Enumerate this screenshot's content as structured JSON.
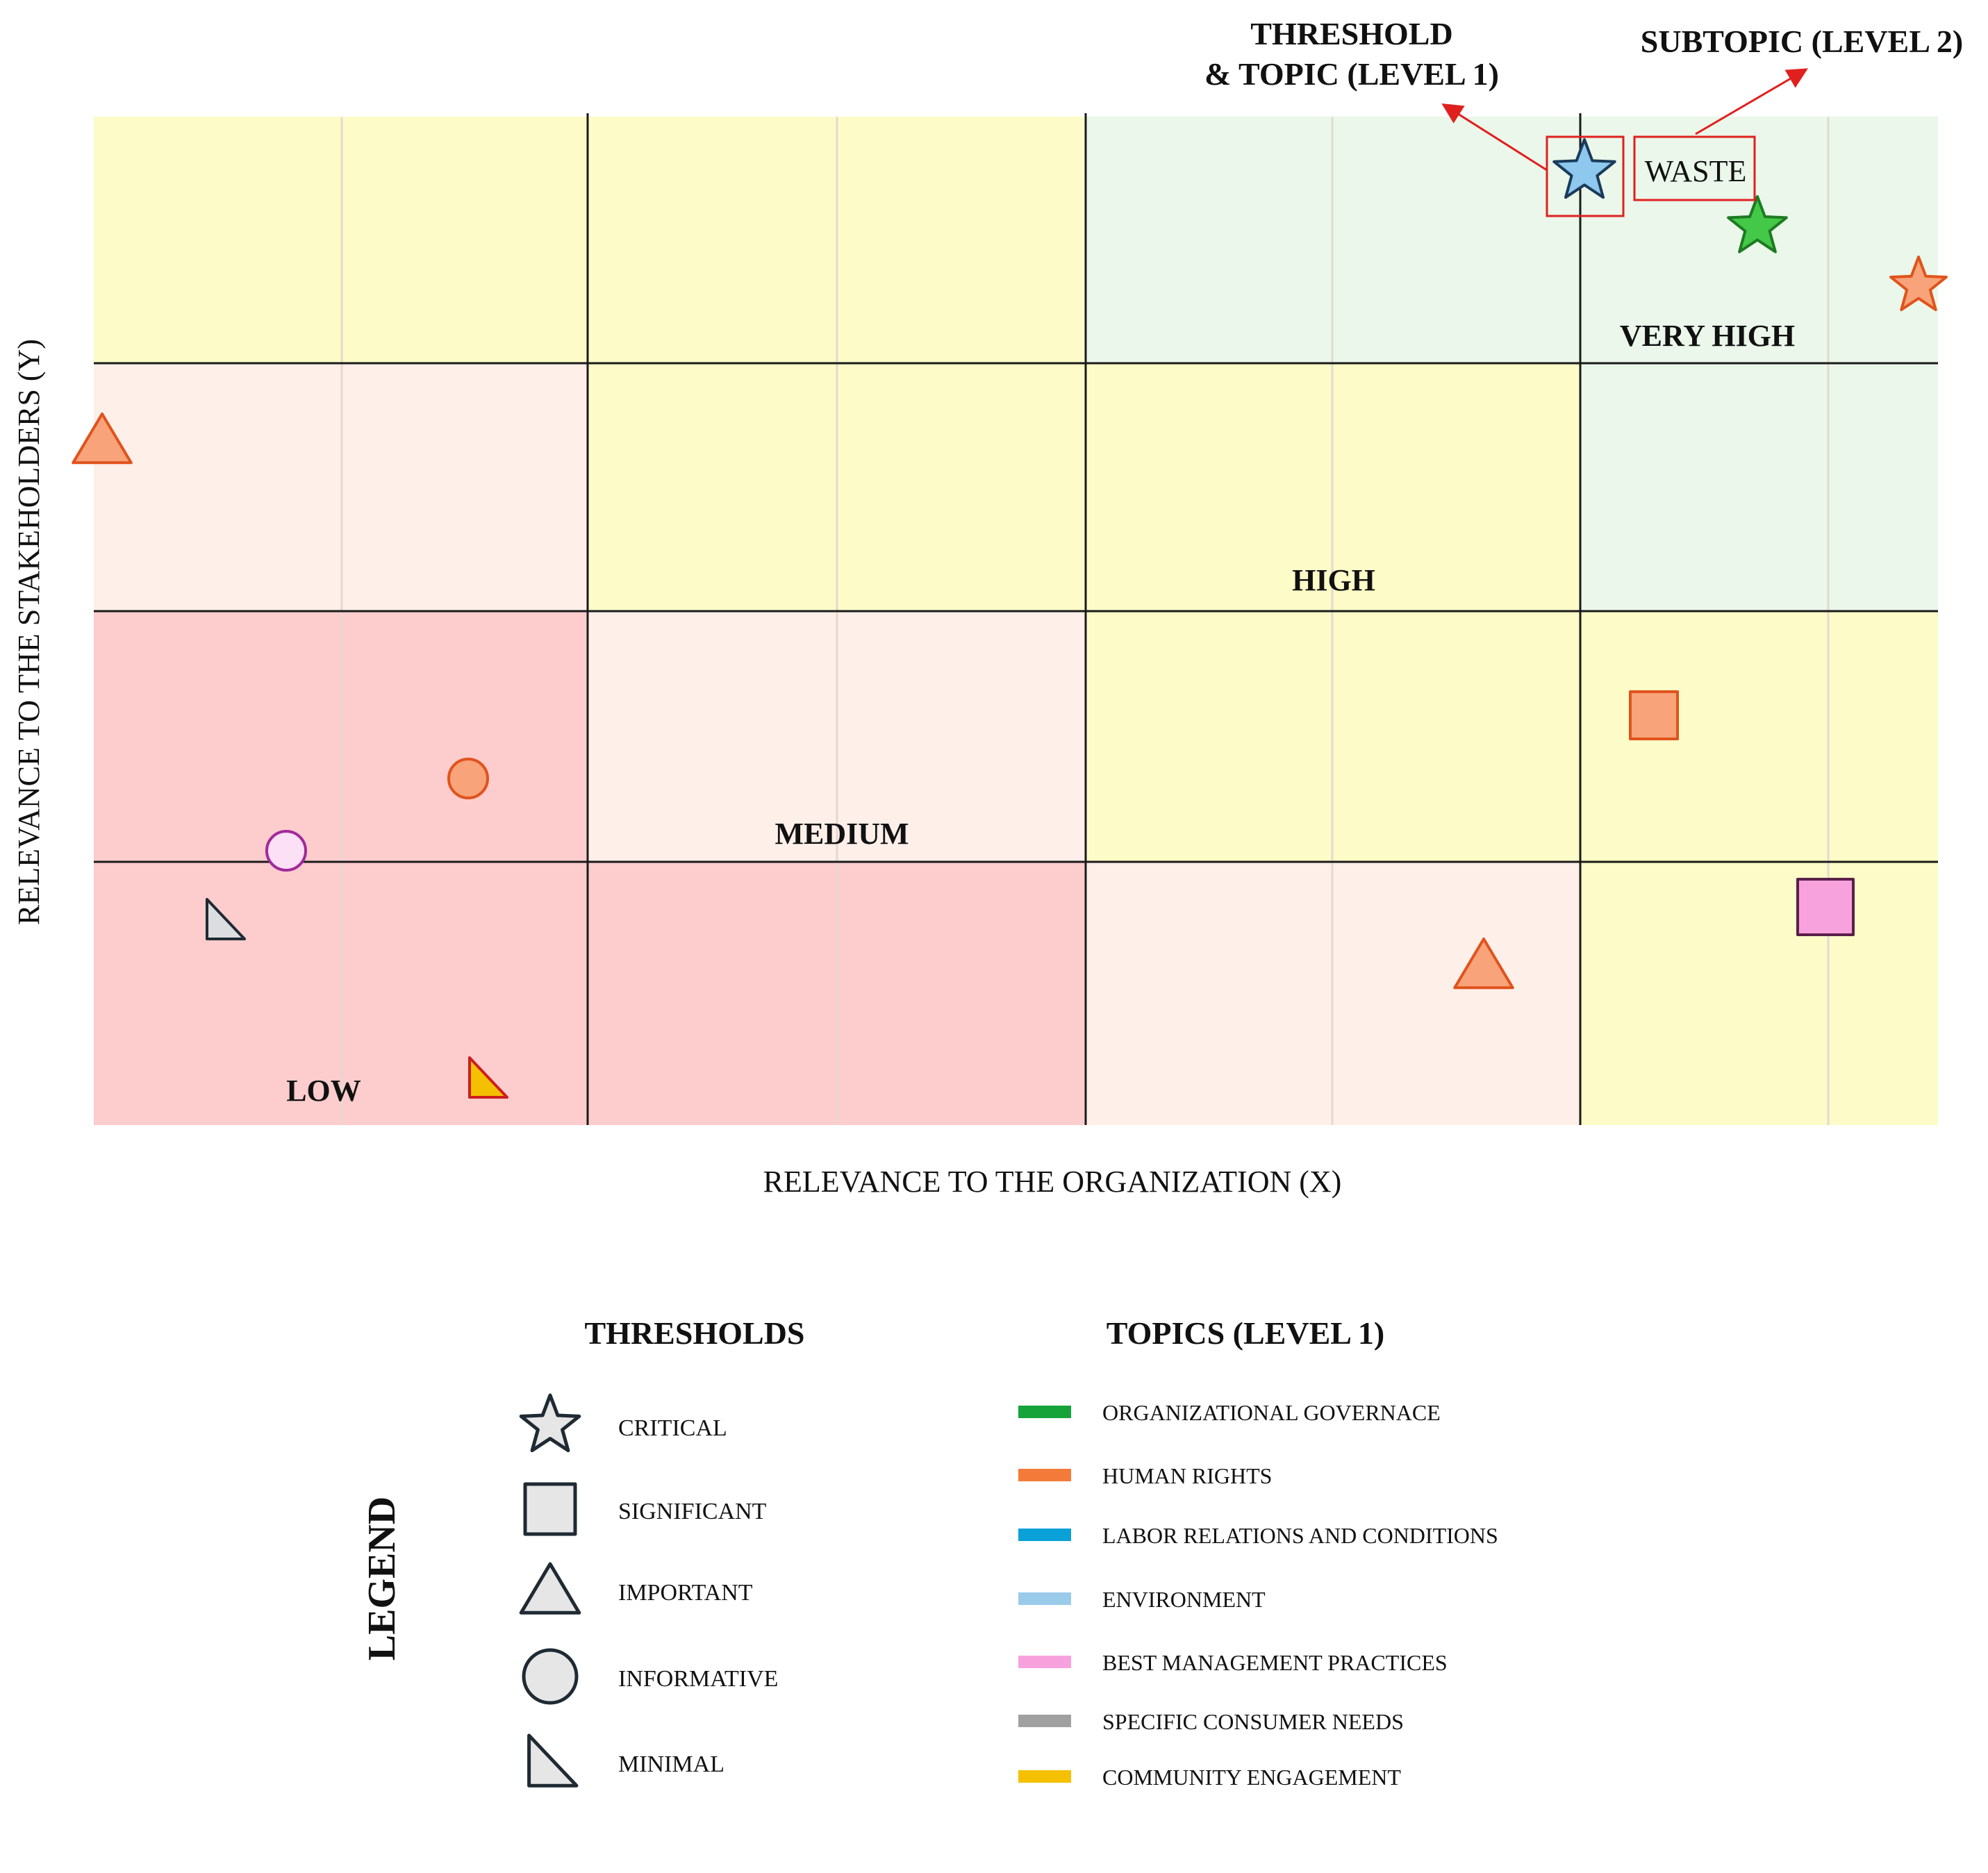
{
  "axes": {
    "x_label": "RELEVANCE TO THE ORGANIZATION (X)",
    "y_label": "RELEVANCE TO THE STAKEHOLDERS (Y)"
  },
  "zones": {
    "low": "LOW",
    "medium": "MEDIUM",
    "high": "HIGH",
    "very_high": "VERY HIGH",
    "colors": {
      "low": "#fdcccd",
      "medium": "#feefe9",
      "high": "#fdfcc8",
      "very_high": "#eaf7ea"
    }
  },
  "annotations": {
    "threshold_topic_line1": "THRESHOLD",
    "threshold_topic_line2": "& TOPIC (LEVEL 1)",
    "subtopic": "SUBTOPIC (LEVEL 2)",
    "example_subtopic": "WASTE",
    "highlight_color": "#e0201e"
  },
  "markers": [
    {
      "shape": "star",
      "threshold": "critical",
      "topic": "environment",
      "color": "#8ec8ee",
      "stroke": "#1b3b5a"
    },
    {
      "shape": "star",
      "threshold": "critical",
      "topic": "organizational_governance",
      "color": "#43c947",
      "stroke": "#1e7a22"
    },
    {
      "shape": "star",
      "threshold": "critical",
      "topic": "human_rights",
      "color": "#f8a37a",
      "stroke": "#e0531c"
    },
    {
      "shape": "triangle",
      "threshold": "important",
      "topic": "human_rights",
      "color": "#f8a37a",
      "stroke": "#e0531c"
    },
    {
      "shape": "square",
      "threshold": "significant",
      "topic": "human_rights",
      "color": "#f8a37a",
      "stroke": "#e0531c"
    },
    {
      "shape": "square",
      "threshold": "significant",
      "topic": "best_management_practices",
      "color": "#f7a2dc",
      "stroke": "#5a1f4a"
    },
    {
      "shape": "triangle",
      "threshold": "important",
      "topic": "human_rights",
      "color": "#f8a37a",
      "stroke": "#e0531c"
    },
    {
      "shape": "circle",
      "threshold": "informative",
      "topic": "human_rights",
      "color": "#f8a37a",
      "stroke": "#e0531c"
    },
    {
      "shape": "circle",
      "threshold": "informative",
      "topic": "best_management_practices",
      "color": "#fce0f6",
      "stroke": "#a02a9a"
    },
    {
      "shape": "right-triangle",
      "threshold": "minimal",
      "topic": "specific_consumer_needs",
      "color": "#dcdde0",
      "stroke": "#1f2a33"
    },
    {
      "shape": "right-triangle",
      "threshold": "minimal",
      "topic": "community_engagement",
      "color": "#f5c000",
      "stroke": "#cc1f1f"
    }
  ],
  "legend": {
    "title": "LEGEND",
    "thresholds_title": "THRESHOLDS",
    "topics_title": "TOPICS (LEVEL 1)",
    "thresholds": [
      {
        "icon": "star-icon",
        "label": "CRITICAL"
      },
      {
        "icon": "square-icon",
        "label": "SIGNIFICANT"
      },
      {
        "icon": "triangle-icon",
        "label": "IMPORTANT"
      },
      {
        "icon": "circle-icon",
        "label": "INFORMATIVE"
      },
      {
        "icon": "right-triangle-icon",
        "label": "MINIMAL"
      }
    ],
    "topics": [
      {
        "label": "ORGANIZATIONAL GOVERNACE",
        "color": "#15a33a"
      },
      {
        "label": "HUMAN RIGHTS",
        "color": "#f47a3a"
      },
      {
        "label": "LABOR RELATIONS AND CONDITIONS",
        "color": "#0aa0d8"
      },
      {
        "label": "ENVIRONMENT",
        "color": "#9acbea"
      },
      {
        "label": "BEST MANAGEMENT PRACTICES",
        "color": "#f7a2dc"
      },
      {
        "label": "SPECIFIC CONSUMER NEEDS",
        "color": "#a0a0a0"
      },
      {
        "label": "COMMUNITY ENGAGEMENT",
        "color": "#f5c000"
      }
    ],
    "icon_fill": "#e6e6e6",
    "icon_stroke": "#1f2a33"
  }
}
